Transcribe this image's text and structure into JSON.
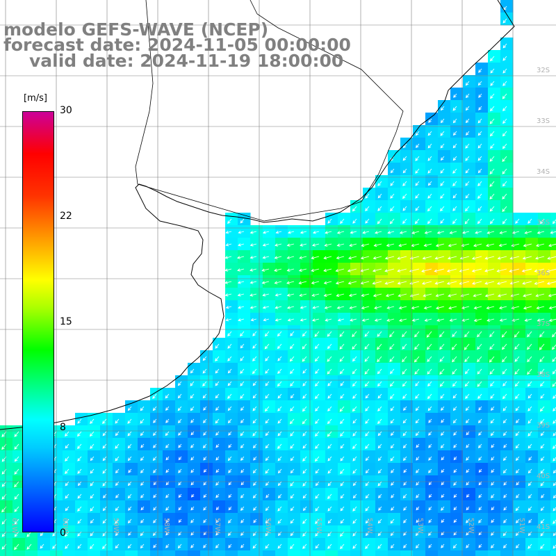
{
  "title": {
    "line1": "modelo GEFS-WAVE (NCEP)",
    "line2": "forecast date: 2024-11-05 00:00:00",
    "line3": "valid date: 2024-11-19 18:00:00"
  },
  "colorbar": {
    "unit": "[m/s]",
    "ticks": [
      "30",
      "22",
      "15",
      "8",
      "0"
    ],
    "tick_values": [
      30,
      22,
      15,
      8,
      0
    ],
    "min": 0,
    "max": 30,
    "stops": [
      {
        "value": 0,
        "color": "#0000ff"
      },
      {
        "value": 3,
        "color": "#0066ff"
      },
      {
        "value": 6,
        "color": "#00ccff"
      },
      {
        "value": 8,
        "color": "#00ffff"
      },
      {
        "value": 11,
        "color": "#00ff66"
      },
      {
        "value": 13,
        "color": "#00ff00"
      },
      {
        "value": 16,
        "color": "#aaff00"
      },
      {
        "value": 18,
        "color": "#ffff00"
      },
      {
        "value": 21,
        "color": "#ff9900"
      },
      {
        "value": 24,
        "color": "#ff3300"
      },
      {
        "value": 27,
        "color": "#ff0000"
      },
      {
        "value": 30,
        "color": "#cc0099"
      }
    ]
  },
  "map": {
    "variable": "wind speed",
    "lat_labels": [
      "32S",
      "33S",
      "34S",
      "35S",
      "36S",
      "37S",
      "38S",
      "39S",
      "40S",
      "41S"
    ],
    "lon_labels": [
      "61W",
      "60W",
      "59W",
      "58W",
      "57W",
      "56W",
      "55W",
      "54W",
      "53W",
      "52W",
      "51W"
    ],
    "colors": {
      "land": "#ffffff",
      "coast": "#000000",
      "grid": "#7a7a7a",
      "vector": "#ffffff"
    }
  }
}
